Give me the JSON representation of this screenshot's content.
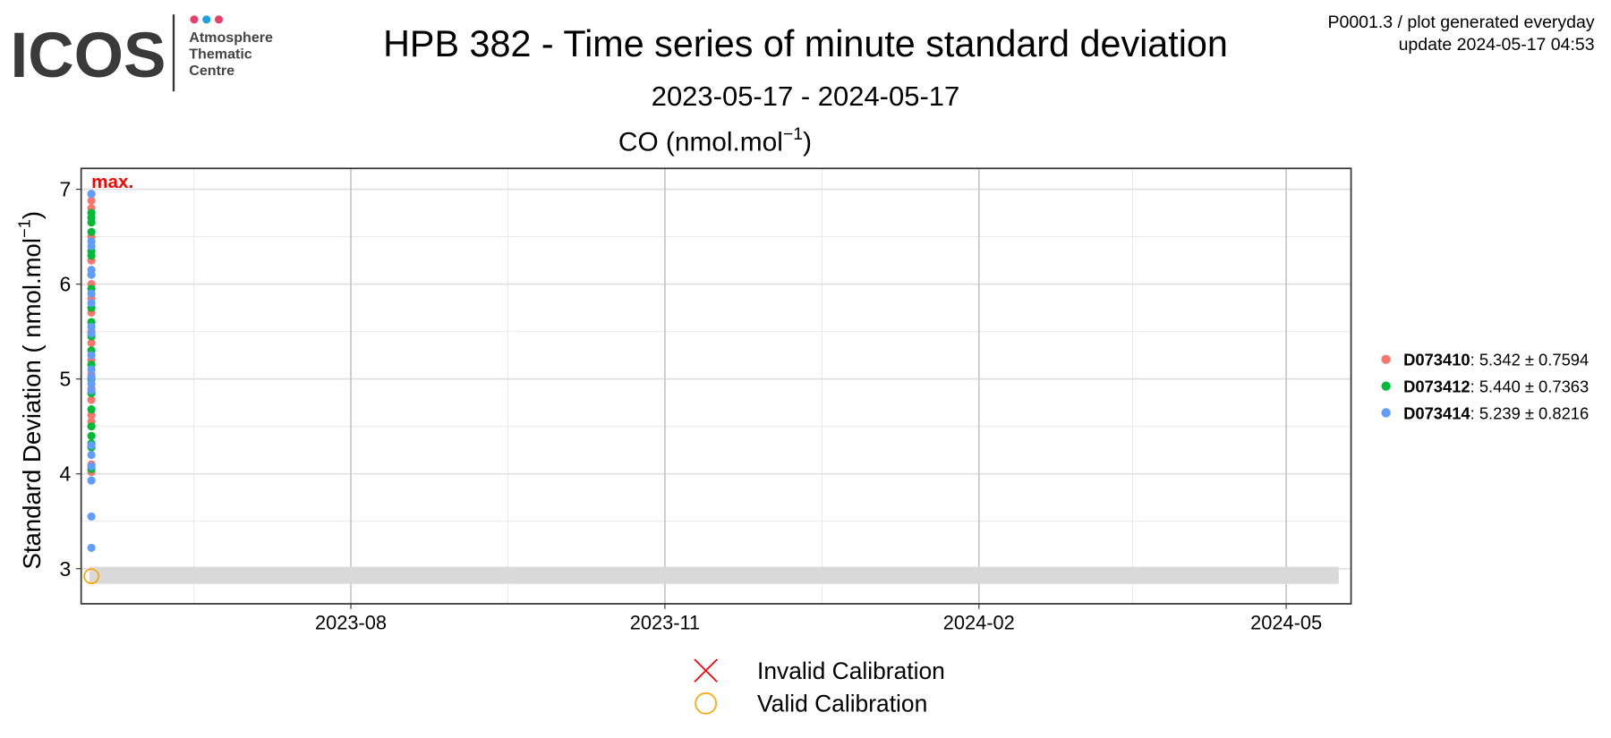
{
  "header": {
    "logo": "ICOS",
    "logo_lines": [
      "Atmosphere",
      "Thematic",
      "Centre"
    ],
    "note_lines": [
      "P0001.3 / plot generated everyday",
      "update  2024-05-17 04:53"
    ]
  },
  "chart_data": {
    "type": "scatter",
    "title": "HPB 382 - Time series of minute standard deviation",
    "subtitle": "2023-05-17 - 2024-05-17",
    "panel_title_parts": [
      "CO (nmol.mol",
      "−1",
      ")"
    ],
    "y_label_parts": [
      "Standard Deviation ( nmol.mol",
      "−1",
      ")"
    ],
    "annotation": "max.",
    "xlim": [
      "2023-05-14",
      "2024-05-20"
    ],
    "xticks": [
      {
        "value": "2023-08-01",
        "label": "2023-08"
      },
      {
        "value": "2023-11-01",
        "label": "2023-11"
      },
      {
        "value": "2024-02-01",
        "label": "2024-02"
      },
      {
        "value": "2024-05-01",
        "label": "2024-05"
      }
    ],
    "xminor": [
      "2023-06-16",
      "2023-09-16",
      "2023-12-17",
      "2024-03-17"
    ],
    "ylim": [
      2.63,
      7.22
    ],
    "yticks": [
      3,
      4,
      5,
      6,
      7
    ],
    "yminor": [
      3.5,
      4.5,
      5.5,
      6.5
    ],
    "grid": true,
    "band": [
      2.84,
      3.02
    ],
    "legend_position": "right",
    "series": [
      {
        "name": "D073410",
        "legend_suffix": ": 5.342 ± 0.7594",
        "color": "#F8766D",
        "x": [
          "2023-05-17",
          "2023-05-17",
          "2023-05-17",
          "2023-05-17",
          "2023-05-17",
          "2023-05-17",
          "2023-05-17",
          "2023-05-17",
          "2023-05-17",
          "2023-05-17",
          "2023-05-17",
          "2023-05-17",
          "2023-05-17",
          "2023-05-17",
          "2023-05-17",
          "2023-05-17",
          "2023-05-17",
          "2023-05-17"
        ],
        "values": [
          6.95,
          6.88,
          6.8,
          6.5,
          6.25,
          6.0,
          5.85,
          5.7,
          5.5,
          5.38,
          5.2,
          5.05,
          4.9,
          4.78,
          4.62,
          4.55,
          4.1,
          4.02
        ]
      },
      {
        "name": "D073412",
        "legend_suffix": ": 5.440 ± 0.7363",
        "color": "#00BA38",
        "x": [
          "2023-05-17",
          "2023-05-17",
          "2023-05-17",
          "2023-05-17",
          "2023-05-17",
          "2023-05-17",
          "2023-05-17",
          "2023-05-17",
          "2023-05-17",
          "2023-05-17",
          "2023-05-17",
          "2023-05-17",
          "2023-05-17",
          "2023-05-17",
          "2023-05-17",
          "2023-05-17",
          "2023-05-17",
          "2023-05-17",
          "2023-05-17",
          "2023-05-17",
          "2023-05-17"
        ],
        "values": [
          6.75,
          6.7,
          6.65,
          6.55,
          6.35,
          6.3,
          6.1,
          5.95,
          5.75,
          5.6,
          5.45,
          5.3,
          5.15,
          5.0,
          4.85,
          4.68,
          4.5,
          4.4,
          4.32,
          4.28,
          4.05
        ]
      },
      {
        "name": "D073414",
        "legend_suffix": ": 5.239 ± 0.8216",
        "color": "#619CFF",
        "x": [
          "2023-05-17",
          "2023-05-17",
          "2023-05-17",
          "2023-05-17",
          "2023-05-17",
          "2023-05-17",
          "2023-05-17",
          "2023-05-17",
          "2023-05-17",
          "2023-05-17",
          "2023-05-17",
          "2023-05-17",
          "2023-05-17",
          "2023-05-17",
          "2023-05-17",
          "2023-05-17",
          "2023-05-17",
          "2023-05-17",
          "2023-05-17",
          "2023-05-17"
        ],
        "values": [
          6.95,
          6.45,
          6.4,
          6.15,
          6.1,
          5.9,
          5.8,
          5.55,
          5.48,
          5.25,
          5.1,
          5.02,
          4.95,
          4.88,
          4.3,
          4.2,
          4.08,
          3.93,
          3.55,
          3.22
        ]
      }
    ],
    "calibration_legend": [
      {
        "name": "Invalid Calibration",
        "color": "#FF0000"
      },
      {
        "name": "Valid Calibration",
        "color": "#FFA500"
      }
    ],
    "calibration_points": {
      "x": [
        "2023-05-17"
      ],
      "values": [
        2.92
      ]
    }
  }
}
